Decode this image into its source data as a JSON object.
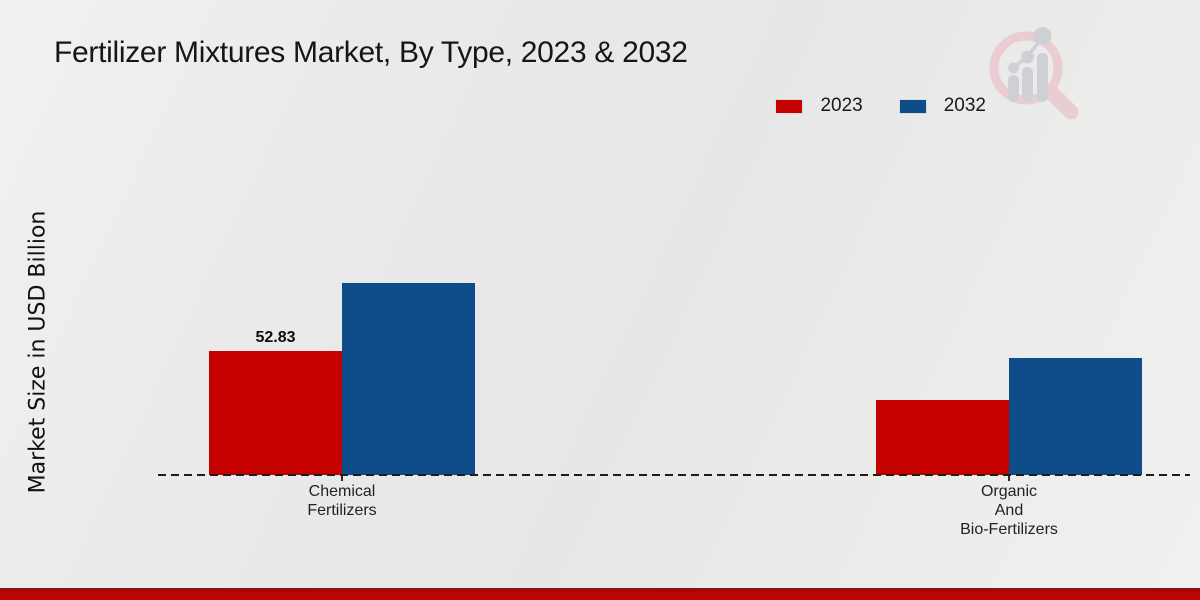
{
  "chart_data": {
    "type": "bar",
    "title": "Fertilizer Mixtures Market, By Type, 2023 & 2032",
    "ylabel": "Market Size in USD Billion",
    "xlabel": "",
    "categories": [
      "Chemical\nFertilizers",
      "Organic\nAnd\nBio-Fertilizers"
    ],
    "series": [
      {
        "name": "2023",
        "color": "#c40001",
        "values": [
          52.83,
          32.0
        ]
      },
      {
        "name": "2032",
        "color": "#0e4d8a",
        "values": [
          81.8,
          49.9
        ]
      }
    ],
    "value_labels": [
      {
        "series": "2023",
        "category_index": 0,
        "text": "52.83"
      }
    ],
    "ylim": [
      0,
      95
    ],
    "grid": false,
    "legend_position": "top-right",
    "baseline_style": "dashed-zero-line"
  },
  "icons": {
    "watermark": "magnifying-glass-bar-chart-logo"
  },
  "colors": {
    "background": "#e9e9e9",
    "series_2023": "#c40001",
    "series_2032": "#0e4d8a",
    "axis_line": "#1c1c1c",
    "footer_accent": "#b90606",
    "logo_ring": "#eacdd2",
    "logo_glyph": "#ced0d6"
  }
}
